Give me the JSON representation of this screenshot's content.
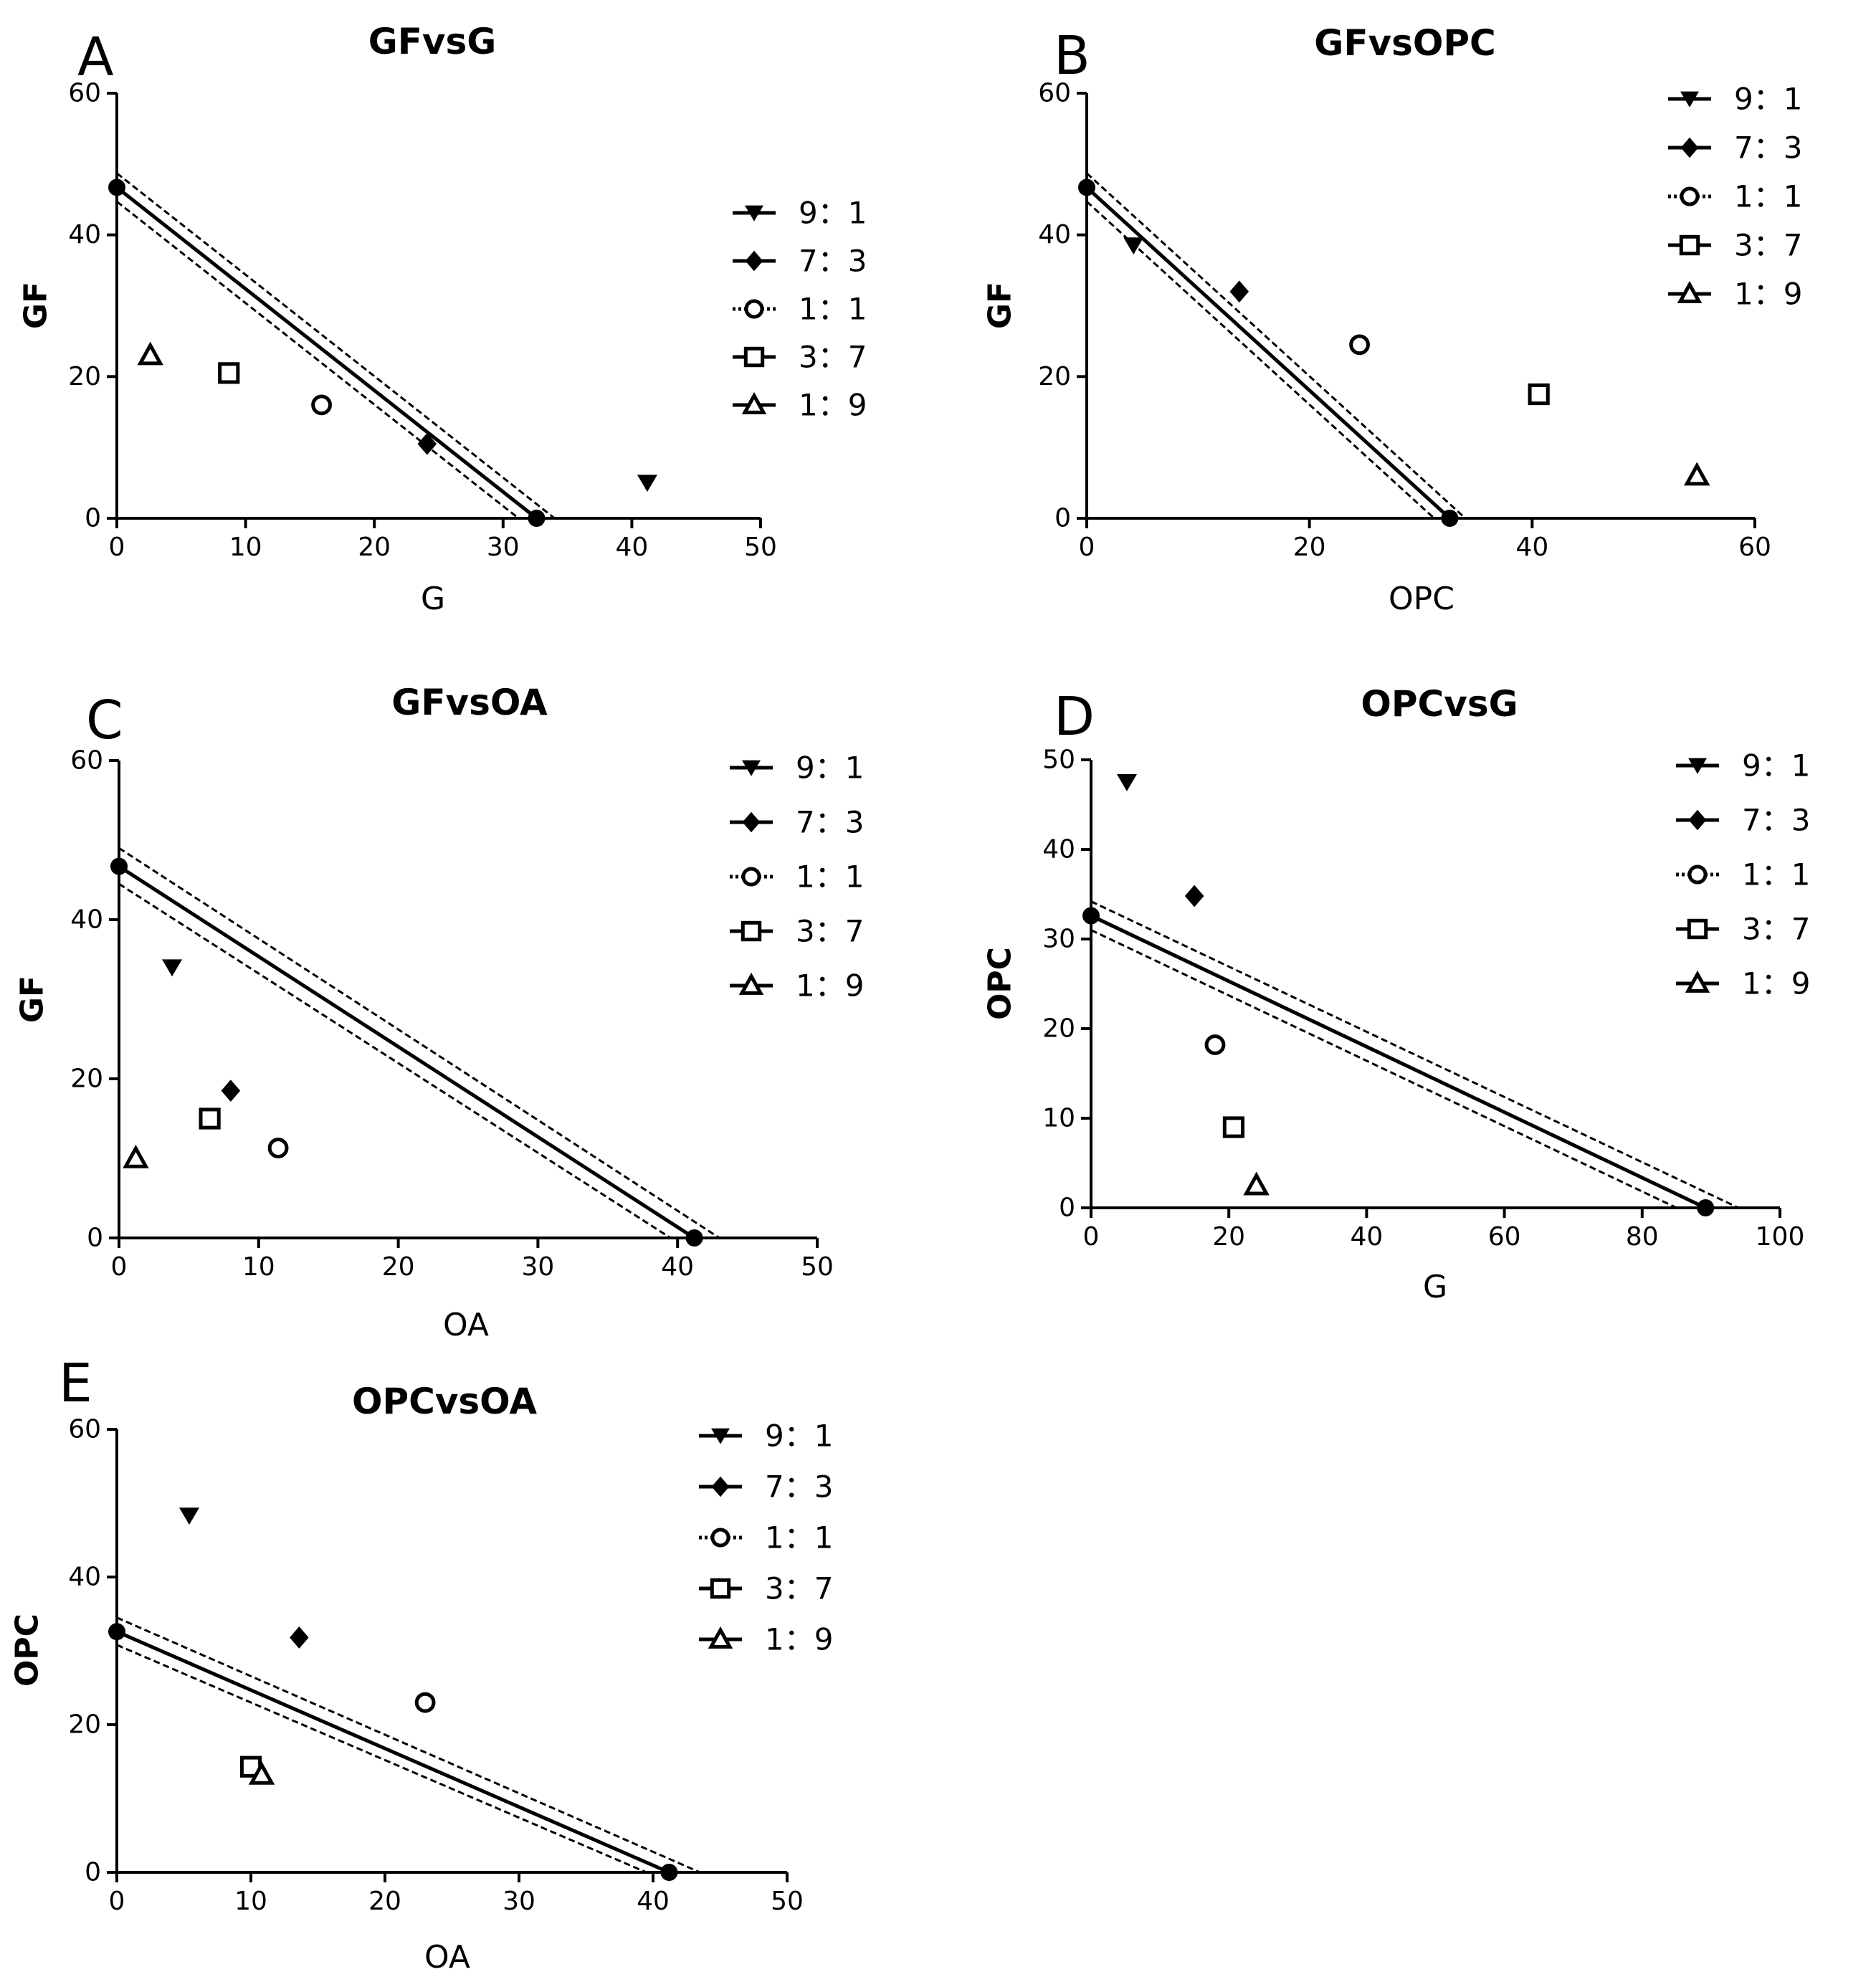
{
  "chart_data": [
    {
      "panel": "A",
      "type": "scatter",
      "title": "GFvsG",
      "xlabel": "G",
      "ylabel": "GF",
      "xlim": [
        0,
        50
      ],
      "ylim": [
        0,
        60
      ],
      "xticks": [
        "0",
        "10",
        "20",
        "30",
        "40",
        "50"
      ],
      "yticks": [
        "0",
        "20",
        "40",
        "60"
      ],
      "line": {
        "x": [
          0,
          32.6
        ],
        "y": [
          46.7,
          0
        ]
      },
      "ci": {
        "upper": {
          "x": [
            0,
            34
          ],
          "y": [
            48.7,
            0
          ]
        },
        "lower": {
          "x": [
            0,
            31.2
          ],
          "y": [
            44.7,
            0
          ]
        }
      },
      "anchors": [
        {
          "x": 0,
          "y": 46.7
        },
        {
          "x": 32.6,
          "y": 0
        }
      ],
      "legend": [
        "9：1",
        "7：3",
        "1：1",
        "3：7",
        "1：9"
      ],
      "series": [
        {
          "name": "9：1",
          "marker": "triangle-down",
          "x": [
            41.2
          ],
          "y": [
            5
          ]
        },
        {
          "name": "7：3",
          "marker": "diamond",
          "x": [
            24.1
          ],
          "y": [
            10.5
          ]
        },
        {
          "name": "1：1",
          "marker": "circle",
          "x": [
            15.9
          ],
          "y": [
            16
          ]
        },
        {
          "name": "3：7",
          "marker": "square",
          "x": [
            8.7
          ],
          "y": [
            20.5
          ]
        },
        {
          "name": "1：9",
          "marker": "triangle-up",
          "x": [
            2.6
          ],
          "y": [
            23
          ]
        }
      ]
    },
    {
      "panel": "B",
      "type": "scatter",
      "title": "GFvsOPC",
      "xlabel": "OPC",
      "ylabel": "GF",
      "xlim": [
        0,
        60
      ],
      "ylim": [
        0,
        60
      ],
      "xticks": [
        "0",
        "20",
        "40",
        "60"
      ],
      "yticks": [
        "0",
        "20",
        "40",
        "60"
      ],
      "line": {
        "x": [
          0,
          32.6
        ],
        "y": [
          46.7,
          0
        ]
      },
      "ci": {
        "upper": {
          "x": [
            0,
            34
          ],
          "y": [
            48.7,
            0
          ]
        },
        "lower": {
          "x": [
            0,
            31.2
          ],
          "y": [
            44.7,
            0
          ]
        }
      },
      "anchors": [
        {
          "x": 0,
          "y": 46.7
        },
        {
          "x": 32.6,
          "y": 0
        }
      ],
      "legend": [
        "9：1",
        "7：3",
        "1：1",
        "3：7",
        "1：9"
      ],
      "series": [
        {
          "name": "9：1",
          "marker": "triangle-down",
          "x": [
            4.2
          ],
          "y": [
            38.5
          ]
        },
        {
          "name": "7：3",
          "marker": "diamond",
          "x": [
            13.7
          ],
          "y": [
            32
          ]
        },
        {
          "name": "1：1",
          "marker": "circle",
          "x": [
            24.5
          ],
          "y": [
            24.5
          ]
        },
        {
          "name": "3：7",
          "marker": "square",
          "x": [
            40.6
          ],
          "y": [
            17.5
          ]
        },
        {
          "name": "1：9",
          "marker": "triangle-up",
          "x": [
            54.8
          ],
          "y": [
            6
          ]
        }
      ]
    },
    {
      "panel": "C",
      "type": "scatter",
      "title": "GFvsOA",
      "xlabel": "OA",
      "ylabel": "GF",
      "xlim": [
        0,
        50
      ],
      "ylim": [
        0,
        60
      ],
      "xticks": [
        "0",
        "10",
        "20",
        "30",
        "40",
        "50"
      ],
      "yticks": [
        "0",
        "20",
        "40",
        "60"
      ],
      "line": {
        "x": [
          0,
          41.2
        ],
        "y": [
          46.7,
          0
        ]
      },
      "ci": {
        "upper": {
          "x": [
            0,
            43
          ],
          "y": [
            49,
            0
          ]
        },
        "lower": {
          "x": [
            0,
            39.5
          ],
          "y": [
            44.5,
            0
          ]
        }
      },
      "anchors": [
        {
          "x": 0,
          "y": 46.7
        },
        {
          "x": 41.2,
          "y": 0
        }
      ],
      "legend": [
        "9：1",
        "7：3",
        "1：1",
        "3：7",
        "1：9"
      ],
      "series": [
        {
          "name": "9：1",
          "marker": "triangle-down",
          "x": [
            3.8
          ],
          "y": [
            34
          ]
        },
        {
          "name": "7：3",
          "marker": "diamond",
          "x": [
            8
          ],
          "y": [
            18.5
          ]
        },
        {
          "name": "1：1",
          "marker": "circle",
          "x": [
            11.4
          ],
          "y": [
            11.3
          ]
        },
        {
          "name": "3：7",
          "marker": "square",
          "x": [
            6.5
          ],
          "y": [
            15
          ]
        },
        {
          "name": "1：9",
          "marker": "triangle-up",
          "x": [
            1.2
          ],
          "y": [
            10
          ]
        }
      ]
    },
    {
      "panel": "D",
      "type": "scatter",
      "title": "OPCvsG",
      "xlabel": "G",
      "ylabel": "OPC",
      "xlim": [
        0,
        100
      ],
      "ylim": [
        0,
        50
      ],
      "xticks": [
        "0",
        "20",
        "40",
        "60",
        "80",
        "100"
      ],
      "yticks": [
        "0",
        "10",
        "20",
        "30",
        "40",
        "50"
      ],
      "line": {
        "x": [
          0,
          89.2
        ],
        "y": [
          32.6,
          0
        ]
      },
      "ci": {
        "upper": {
          "x": [
            0,
            94
          ],
          "y": [
            34.2,
            0
          ]
        },
        "lower": {
          "x": [
            0,
            85
          ],
          "y": [
            31,
            0
          ]
        }
      },
      "anchors": [
        {
          "x": 0,
          "y": 32.6
        },
        {
          "x": 89.2,
          "y": 0
        }
      ],
      "legend": [
        "9：1",
        "7：3",
        "1：1",
        "3：7",
        "1：9"
      ],
      "series": [
        {
          "name": "9：1",
          "marker": "triangle-down",
          "x": [
            5.2
          ],
          "y": [
            47.5
          ]
        },
        {
          "name": "7：3",
          "marker": "diamond",
          "x": [
            15
          ],
          "y": [
            34.8
          ]
        },
        {
          "name": "1：1",
          "marker": "circle",
          "x": [
            18
          ],
          "y": [
            18.2
          ]
        },
        {
          "name": "3：7",
          "marker": "square",
          "x": [
            20.7
          ],
          "y": [
            9
          ]
        },
        {
          "name": "1：9",
          "marker": "triangle-up",
          "x": [
            24
          ],
          "y": [
            2.5
          ]
        }
      ]
    },
    {
      "panel": "E",
      "type": "scatter",
      "title": "OPCvsOA",
      "xlabel": "OA",
      "ylabel": "OPC",
      "xlim": [
        0,
        50
      ],
      "ylim": [
        0,
        60
      ],
      "xticks": [
        "0",
        "10",
        "20",
        "30",
        "40",
        "50"
      ],
      "yticks": [
        "0",
        "20",
        "40",
        "60"
      ],
      "line": {
        "x": [
          0,
          41.2
        ],
        "y": [
          32.6,
          0
        ]
      },
      "ci": {
        "upper": {
          "x": [
            0,
            43.5
          ],
          "y": [
            34.5,
            0
          ]
        },
        "lower": {
          "x": [
            0,
            39.5
          ],
          "y": [
            30.8,
            0
          ]
        }
      },
      "anchors": [
        {
          "x": 0,
          "y": 32.6
        },
        {
          "x": 41.2,
          "y": 0
        }
      ],
      "legend": [
        "9：1",
        "7：3",
        "1：1",
        "3：7",
        "1：9"
      ],
      "series": [
        {
          "name": "9：1",
          "marker": "triangle-down",
          "x": [
            5.4
          ],
          "y": [
            48.3
          ]
        },
        {
          "name": "7：3",
          "marker": "diamond",
          "x": [
            13.6
          ],
          "y": [
            31.8
          ]
        },
        {
          "name": "1：1",
          "marker": "circle",
          "x": [
            23
          ],
          "y": [
            23
          ]
        },
        {
          "name": "3：7",
          "marker": "square",
          "x": [
            10
          ],
          "y": [
            14.3
          ]
        },
        {
          "name": "1：9",
          "marker": "triangle-up",
          "x": [
            10.8
          ],
          "y": [
            13.2
          ]
        }
      ]
    }
  ]
}
